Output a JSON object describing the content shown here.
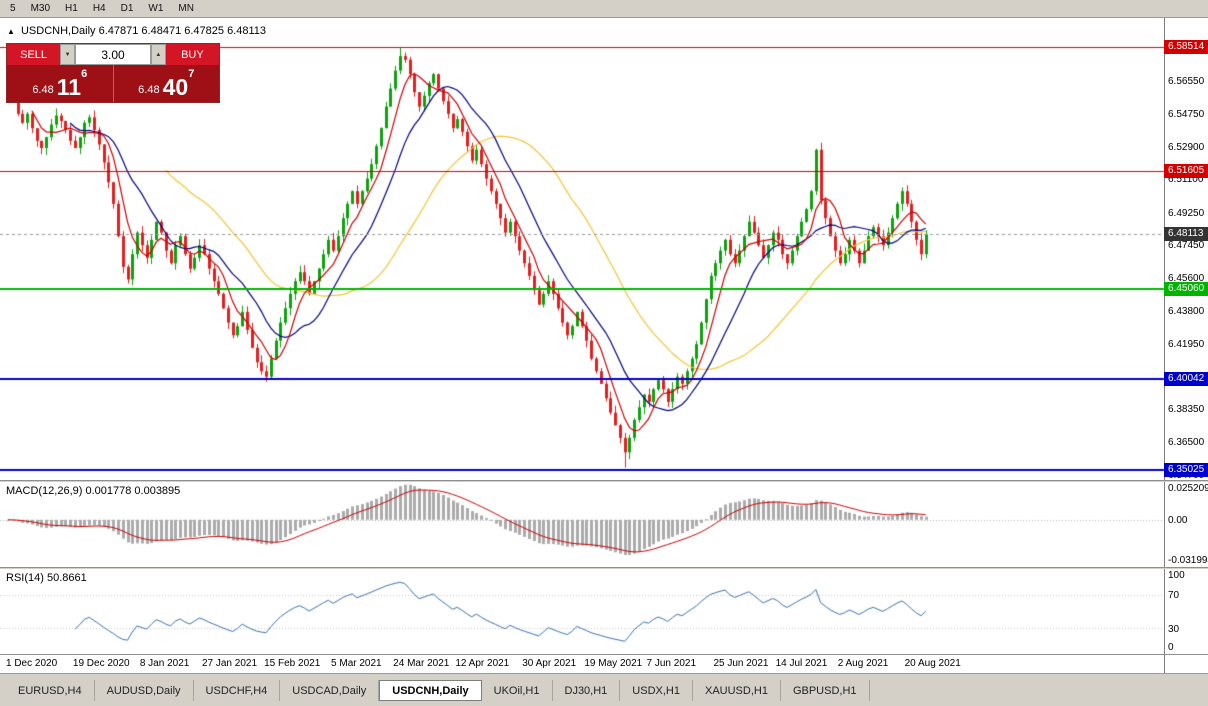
{
  "toolbar": {
    "timeframes": [
      "5",
      "M30",
      "H1",
      "H4",
      "D1",
      "W1",
      "MN"
    ]
  },
  "chart": {
    "marker_icon": "▲",
    "symbol_title": "USDCNH,Daily",
    "ohlc": "6.47871 6.48471 6.47825 6.48113"
  },
  "trade_widget": {
    "sell_label": "SELL",
    "buy_label": "BUY",
    "volume": "3.00",
    "decrease_icon": "▼",
    "increase_icon": "▲",
    "sell_price": {
      "big": "6.48",
      "main": "11",
      "sup": "6"
    },
    "buy_price": {
      "big": "6.48",
      "main": "40",
      "sup": "7"
    }
  },
  "main": {
    "price_axis": [
      "6.56550",
      "6.54750",
      "6.52900",
      "6.51100",
      "6.49250",
      "6.47450",
      "6.45600",
      "6.43800",
      "6.41950",
      "6.40150",
      "6.38350",
      "6.36500",
      "6.34700"
    ],
    "hlines": [
      {
        "price": 6.58514,
        "label": "6.58514",
        "color": "#d40000",
        "line_width": 1
      },
      {
        "price": 6.51605,
        "label": "6.51605",
        "color": "#d40000",
        "line_width": 1
      },
      {
        "price": 6.4506,
        "label": "6.45060",
        "color": "#00b400",
        "line_width": 2
      },
      {
        "price": 6.40042,
        "label": "6.40042",
        "color": "#0000cc",
        "line_width": 2
      },
      {
        "price": 6.35025,
        "label": "6.35025",
        "color": "#0000cc",
        "line_width": 2
      }
    ],
    "current_price": {
      "price": 6.48113,
      "label": "6.48113",
      "color": "#333333"
    }
  },
  "macd": {
    "label": "MACD(12,26,9) 0.001778 0.003895",
    "axis": [
      "0.025209",
      "0.00",
      "-0.031994"
    ],
    "axis_values": [
      0.025209,
      0,
      -0.031994
    ]
  },
  "rsi": {
    "label": "RSI(14) 50.8661",
    "axis": [
      "100",
      "70",
      "30",
      "0"
    ],
    "axis_values": [
      100,
      70,
      30,
      0
    ]
  },
  "date_axis": [
    "1 Dec 2020",
    "19 Dec 2020",
    "8 Jan 2021",
    "27 Jan 2021",
    "15 Feb 2021",
    "5 Mar 2021",
    "24 Mar 2021",
    "12 Apr 2021",
    "30 Apr 2021",
    "19 May 2021",
    "7 Jun 2021",
    "25 Jun 2021",
    "14 Jul 2021",
    "2 Aug 2021",
    "20 Aug 2021"
  ],
  "tabs": [
    {
      "label": "EURUSD,H4",
      "active": false
    },
    {
      "label": "AUDUSD,Daily",
      "active": false
    },
    {
      "label": "USDCHF,H4",
      "active": false
    },
    {
      "label": "USDCAD,Daily",
      "active": false
    },
    {
      "label": "USDCNH,Daily",
      "active": true
    },
    {
      "label": "UKOil,H1",
      "active": false
    },
    {
      "label": "DJ30,H1",
      "active": false
    },
    {
      "label": "USDX,H1",
      "active": false
    },
    {
      "label": "XAUUSD,H1",
      "active": false
    },
    {
      "label": "GBPUSD,H1",
      "active": false
    }
  ],
  "chart_data": {
    "type": "candlestick",
    "title": "USDCNH Daily",
    "price_range": [
      6.3446,
      6.6012
    ],
    "up_color": "#0fa00f",
    "down_color": "#e02020",
    "macd_hist_color": "#ababab",
    "macd_signal_color": "#cc0000",
    "rsi_color": "#3572b0",
    "x_labels": [
      "1 Dec 2020",
      "19 Dec 2020",
      "8 Jan 2021",
      "27 Jan 2021",
      "15 Feb 2021",
      "5 Mar 2021",
      "24 Mar 2021",
      "12 Apr 2021",
      "30 Apr 2021",
      "19 May 2021",
      "7 Jun 2021",
      "25 Jun 2021",
      "14 Jul 2021",
      "2 Aug 2021",
      "20 Aug 2021"
    ],
    "date_ticks": [
      0,
      14,
      28,
      41,
      54,
      68,
      81,
      94,
      108,
      121,
      134,
      148,
      161,
      174,
      188
    ],
    "overlays": [
      {
        "name": "ma-fast",
        "period": 6,
        "color": "#cc0000"
      },
      {
        "name": "ma-mid",
        "period": 14,
        "color": "#000080"
      },
      {
        "name": "ma-slow",
        "period": 34,
        "color": "#f2c431"
      }
    ],
    "indicators": [
      {
        "name": "MACD",
        "params": [
          12,
          26,
          9
        ],
        "last": [
          0.001778,
          0.003895
        ]
      },
      {
        "name": "RSI",
        "params": [
          14
        ],
        "last": 50.8661
      }
    ],
    "closes": [
      6.562,
      6.557,
      6.548,
      6.543,
      6.548,
      6.54,
      6.533,
      6.529,
      6.535,
      6.542,
      6.547,
      6.544,
      6.539,
      6.533,
      6.529,
      6.535,
      6.543,
      6.546,
      6.539,
      6.531,
      6.521,
      6.51,
      6.498,
      6.48,
      6.463,
      6.456,
      6.47,
      6.482,
      6.475,
      6.468,
      6.478,
      6.488,
      6.482,
      6.472,
      6.465,
      6.475,
      6.48,
      6.47,
      6.462,
      6.468,
      6.475,
      6.47,
      6.462,
      6.455,
      6.448,
      6.44,
      6.432,
      6.425,
      6.43,
      6.438,
      6.428,
      6.418,
      6.41,
      6.405,
      6.402,
      6.412,
      6.422,
      6.432,
      6.44,
      6.448,
      6.455,
      6.46,
      6.455,
      6.448,
      6.455,
      6.462,
      6.47,
      6.478,
      6.472,
      6.48,
      6.49,
      6.498,
      6.505,
      6.498,
      6.505,
      6.512,
      6.52,
      6.53,
      6.54,
      6.552,
      6.562,
      6.572,
      6.58,
      6.578,
      6.57,
      6.56,
      6.552,
      6.558,
      6.565,
      6.57,
      6.562,
      6.555,
      6.548,
      6.54,
      6.545,
      6.538,
      6.53,
      6.522,
      6.528,
      6.52,
      6.512,
      6.505,
      6.498,
      6.49,
      6.482,
      6.488,
      6.48,
      6.472,
      6.465,
      6.458,
      6.45,
      6.442,
      6.448,
      6.455,
      6.448,
      6.44,
      6.432,
      6.425,
      6.43,
      6.438,
      6.43,
      6.422,
      6.412,
      6.405,
      6.398,
      6.39,
      6.382,
      6.375,
      6.368,
      6.36,
      6.368,
      6.378,
      6.385,
      6.392,
      6.388,
      6.395,
      6.4,
      6.395,
      6.388,
      6.395,
      6.402,
      6.398,
      6.405,
      6.412,
      6.42,
      6.432,
      6.445,
      6.458,
      6.465,
      6.472,
      6.478,
      6.47,
      6.465,
      6.472,
      6.48,
      6.488,
      6.482,
      6.475,
      6.468,
      6.475,
      6.482,
      6.478,
      6.47,
      6.465,
      6.472,
      6.48,
      6.488,
      6.495,
      6.505,
      6.528,
      6.5,
      6.49,
      6.48,
      6.472,
      6.465,
      6.47,
      6.478,
      6.472,
      6.465,
      6.472,
      6.48,
      6.485,
      6.48,
      6.475,
      6.482,
      6.49,
      6.498,
      6.505,
      6.498,
      6.488,
      6.478,
      6.47,
      6.4811
    ]
  }
}
